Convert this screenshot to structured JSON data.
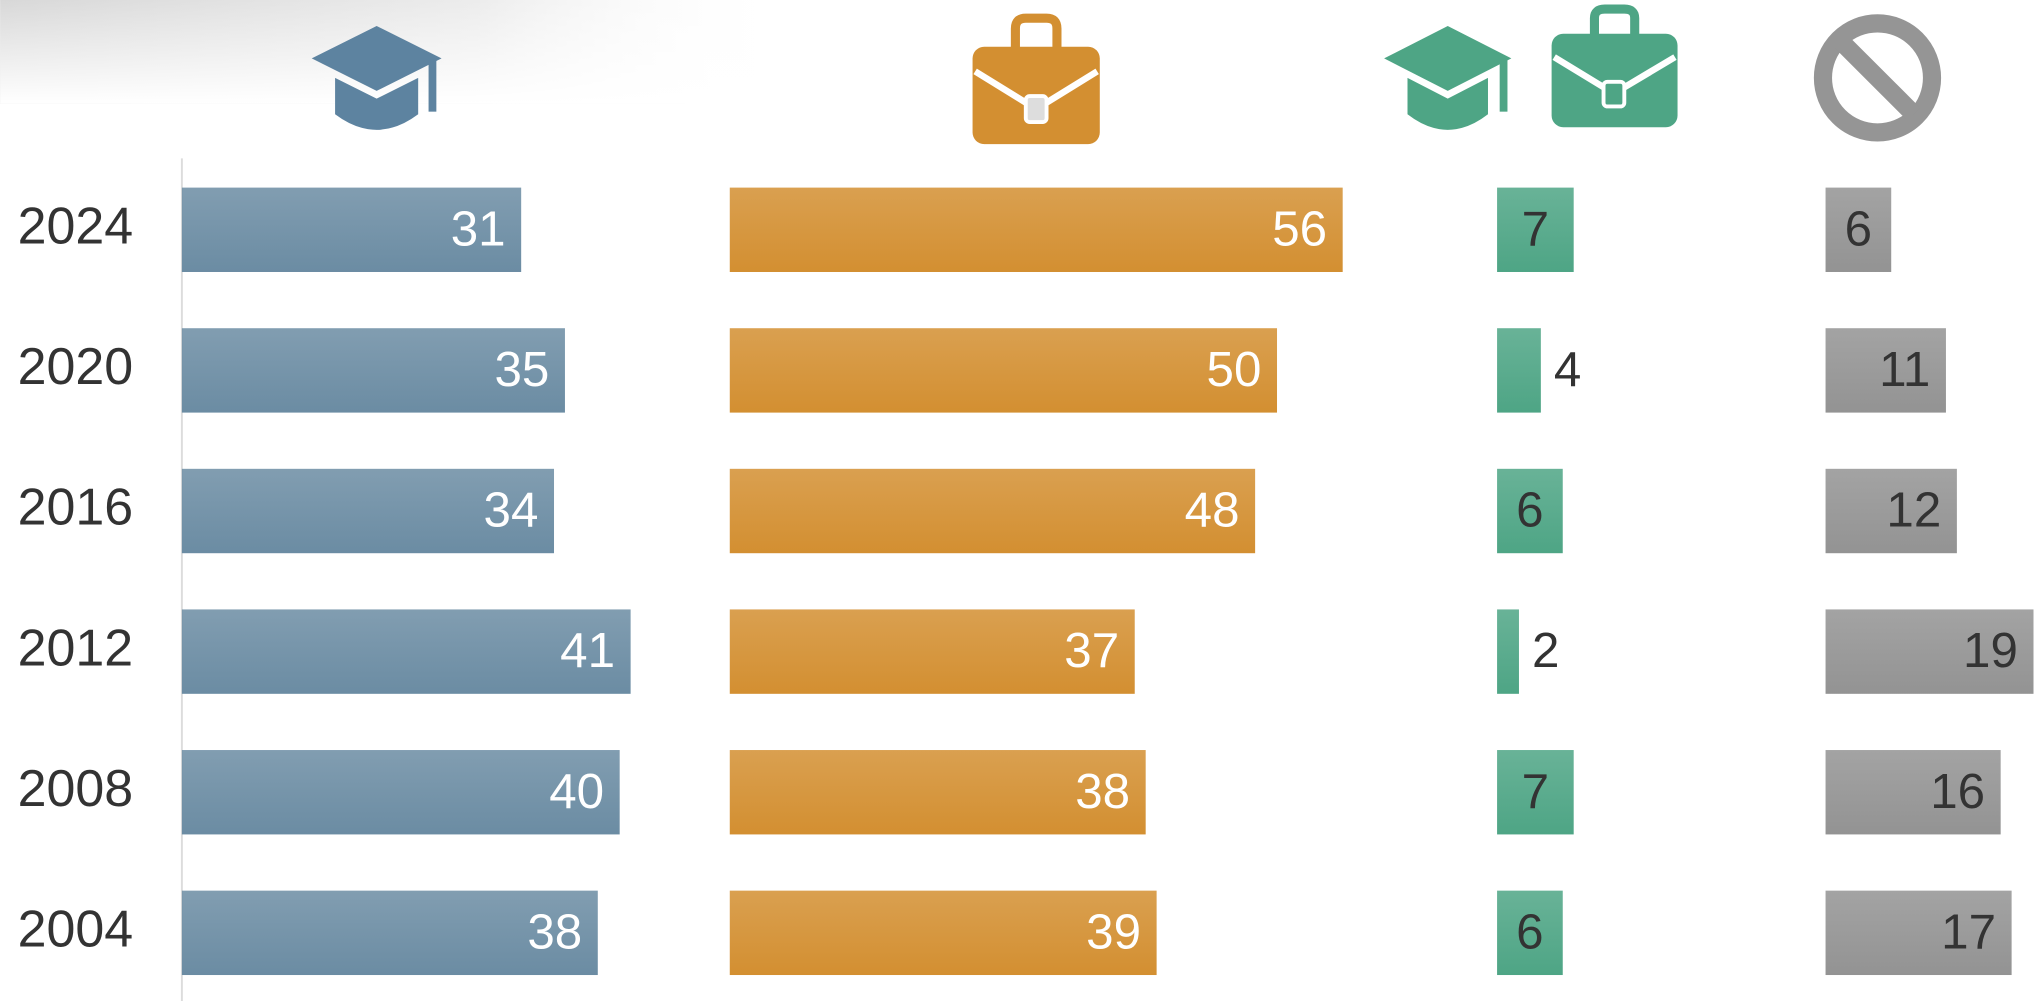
{
  "chart_data": {
    "type": "bar",
    "categories": [
      "2024",
      "2020",
      "2016",
      "2012",
      "2008",
      "2004"
    ],
    "series": [
      {
        "color": "#6b8ca3",
        "values": [
          31,
          35,
          34,
          41,
          40,
          38
        ]
      },
      {
        "color": "#d38f31",
        "values": [
          56,
          50,
          48,
          37,
          38,
          39
        ]
      },
      {
        "color": "#4ea585",
        "values": [
          7,
          4,
          6,
          2,
          7,
          6
        ]
      },
      {
        "color": "#939393",
        "values": [
          6,
          11,
          12,
          19,
          16,
          17
        ]
      }
    ]
  }
}
